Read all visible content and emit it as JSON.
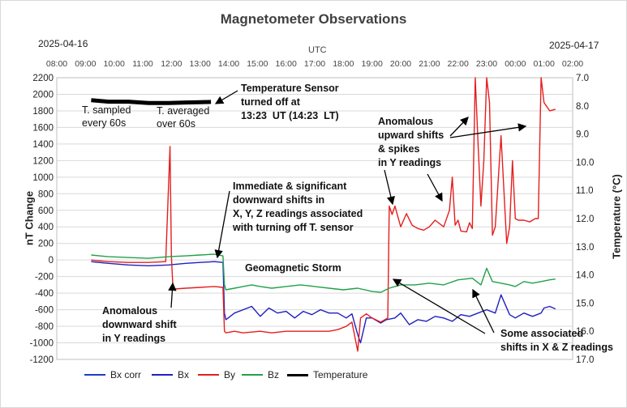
{
  "chart_data": {
    "type": "line",
    "title": "Magnetometer Observations",
    "date_left": "2025-04-16",
    "date_right": "2025-04-17",
    "x_top_label": "UTC",
    "xlabel": "",
    "ylabel": "nT Change",
    "y2label": "Temperature (°C)",
    "x_ticks": [
      "08:00",
      "09:00",
      "10:00",
      "11:00",
      "12:00",
      "13:00",
      "14:00",
      "15:00",
      "16:00",
      "17:00",
      "18:00",
      "19:00",
      "20:00",
      "21:00",
      "22:00",
      "23:00",
      "00:00",
      "01:00",
      "02:00"
    ],
    "xlim": [
      8,
      26
    ],
    "ylim": [
      -1200,
      2200
    ],
    "y_ticks": [
      -1200,
      -1000,
      -800,
      -600,
      -400,
      -200,
      0,
      200,
      400,
      600,
      800,
      1000,
      1200,
      1400,
      1600,
      1800,
      2000,
      2200
    ],
    "y2lim": [
      17.0,
      7.0
    ],
    "y2_ticks": [
      "7.0",
      "8.0",
      "9.0",
      "10.0",
      "11.0",
      "12.0",
      "13.0",
      "14.0",
      "15.0",
      "16.0",
      "17.0"
    ],
    "grid": true,
    "legend_position": "bottom",
    "series": [
      {
        "name": "Bx corr",
        "color": "#1f3fbf",
        "axis": "left",
        "x": [],
        "values": []
      },
      {
        "name": "Bx",
        "color": "#1f1fbf",
        "axis": "left",
        "x": [
          9.2,
          9.8,
          10.5,
          11.2,
          11.9,
          12.5,
          13.0,
          13.5,
          13.8,
          13.85,
          13.9,
          14.2,
          14.5,
          14.8,
          15.1,
          15.4,
          15.7,
          16.0,
          16.3,
          16.6,
          16.9,
          17.2,
          17.5,
          17.8,
          18.1,
          18.3,
          18.5,
          18.6,
          18.8,
          19.0,
          19.3,
          19.5,
          19.8,
          20.0,
          20.3,
          20.6,
          20.9,
          21.2,
          21.5,
          21.8,
          22.1,
          22.4,
          22.7,
          23.0,
          23.3,
          23.5,
          23.8,
          24.0,
          24.3,
          24.6,
          24.9,
          25.0,
          25.2,
          25.4
        ],
        "values": [
          -20,
          -40,
          -60,
          -70,
          -60,
          -40,
          -30,
          -20,
          -30,
          -640,
          -720,
          -640,
          -600,
          -560,
          -680,
          -580,
          -640,
          -620,
          -700,
          -620,
          -660,
          -600,
          -640,
          -640,
          -700,
          -650,
          -900,
          -1000,
          -700,
          -700,
          -760,
          -720,
          -700,
          -640,
          -780,
          -720,
          -740,
          -680,
          -700,
          -740,
          -660,
          -680,
          -640,
          -600,
          -640,
          -420,
          -660,
          -700,
          -640,
          -680,
          -640,
          -580,
          -560,
          -590
        ]
      },
      {
        "name": "By",
        "color": "#e51e1e",
        "axis": "left",
        "x": [
          9.2,
          9.8,
          10.5,
          11.2,
          11.8,
          11.95,
          12.0,
          12.05,
          12.1,
          12.5,
          13.0,
          13.5,
          13.8,
          13.85,
          13.9,
          14.2,
          14.5,
          14.8,
          15.1,
          15.5,
          16.0,
          16.5,
          17.0,
          17.5,
          17.8,
          18.1,
          18.3,
          18.5,
          18.6,
          18.8,
          19.0,
          19.3,
          19.55,
          19.6,
          19.7,
          19.8,
          20.0,
          20.2,
          20.4,
          20.6,
          20.8,
          21.0,
          21.2,
          21.5,
          21.7,
          21.8,
          21.9,
          22.0,
          22.1,
          22.3,
          22.4,
          22.5,
          22.6,
          22.7,
          22.8,
          22.9,
          23.0,
          23.1,
          23.2,
          23.3,
          23.5,
          23.7,
          23.8,
          23.9,
          24.0,
          24.1,
          24.3,
          24.5,
          24.6,
          24.7,
          24.8,
          24.9,
          25.0,
          25.2,
          25.4
        ],
        "values": [
          0,
          -20,
          -30,
          -30,
          -20,
          1370,
          50,
          -320,
          -350,
          -340,
          -330,
          -320,
          -330,
          -860,
          -880,
          -860,
          -880,
          -870,
          -860,
          -880,
          -860,
          -860,
          -860,
          -860,
          -840,
          -800,
          -750,
          -1100,
          -700,
          -650,
          -700,
          -750,
          -700,
          650,
          550,
          650,
          400,
          560,
          420,
          380,
          360,
          400,
          480,
          400,
          600,
          1000,
          420,
          480,
          350,
          340,
          450,
          380,
          2200,
          1400,
          650,
          1200,
          2200,
          1900,
          300,
          400,
          1500,
          200,
          400,
          1200,
          500,
          480,
          480,
          460,
          480,
          500,
          500,
          2200,
          1900,
          1800,
          1820
        ]
      },
      {
        "name": "Bz",
        "color": "#21a14a",
        "axis": "left",
        "x": [
          9.2,
          9.8,
          10.5,
          11.2,
          11.9,
          12.5,
          13.0,
          13.5,
          13.8,
          13.85,
          13.9,
          14.2,
          14.5,
          14.8,
          15.1,
          15.5,
          16.0,
          16.5,
          17.0,
          17.5,
          18.0,
          18.5,
          19.0,
          19.3,
          19.6,
          19.8,
          20.0,
          20.5,
          21.0,
          21.5,
          22.0,
          22.5,
          22.8,
          23.0,
          23.2,
          23.5,
          23.8,
          24.0,
          24.3,
          24.6,
          24.9,
          25.2,
          25.4
        ],
        "values": [
          60,
          40,
          30,
          20,
          40,
          50,
          60,
          70,
          50,
          -300,
          -360,
          -340,
          -320,
          -300,
          -320,
          -340,
          -320,
          -300,
          -320,
          -340,
          -360,
          -340,
          -380,
          -390,
          -340,
          -320,
          -300,
          -300,
          -280,
          -300,
          -240,
          -220,
          -300,
          -100,
          -260,
          -280,
          -300,
          -320,
          -260,
          -280,
          -260,
          -240,
          -230
        ]
      },
      {
        "name": "Temperature",
        "color": "#000000",
        "axis": "right",
        "x": [
          9.2,
          9.8,
          10.5,
          11.2,
          11.9,
          12.5,
          13.0,
          13.38
        ],
        "values": [
          7.8,
          7.85,
          7.85,
          7.9,
          7.9,
          7.88,
          7.87,
          7.86
        ]
      }
    ],
    "annotations": [
      {
        "text": "T. sampled\nevery 60s"
      },
      {
        "text": "T. averaged\nover 60s"
      },
      {
        "text": "Temperature Sensor\nturned off at\n13:23  UT (14:23  LT)"
      },
      {
        "text": "Immediate & significant\ndownward shifts in\nX, Y, Z readings associated\nwith turning off T. sensor"
      },
      {
        "text": "Anomalous\nupward shifts\n& spikes\nin Y readings"
      },
      {
        "text": "Geomagnetic Storm"
      },
      {
        "text": "Anomalous\ndownward shift\nin Y readings"
      },
      {
        "text": "Some associated\nshifts in X & Z readings"
      }
    ]
  }
}
